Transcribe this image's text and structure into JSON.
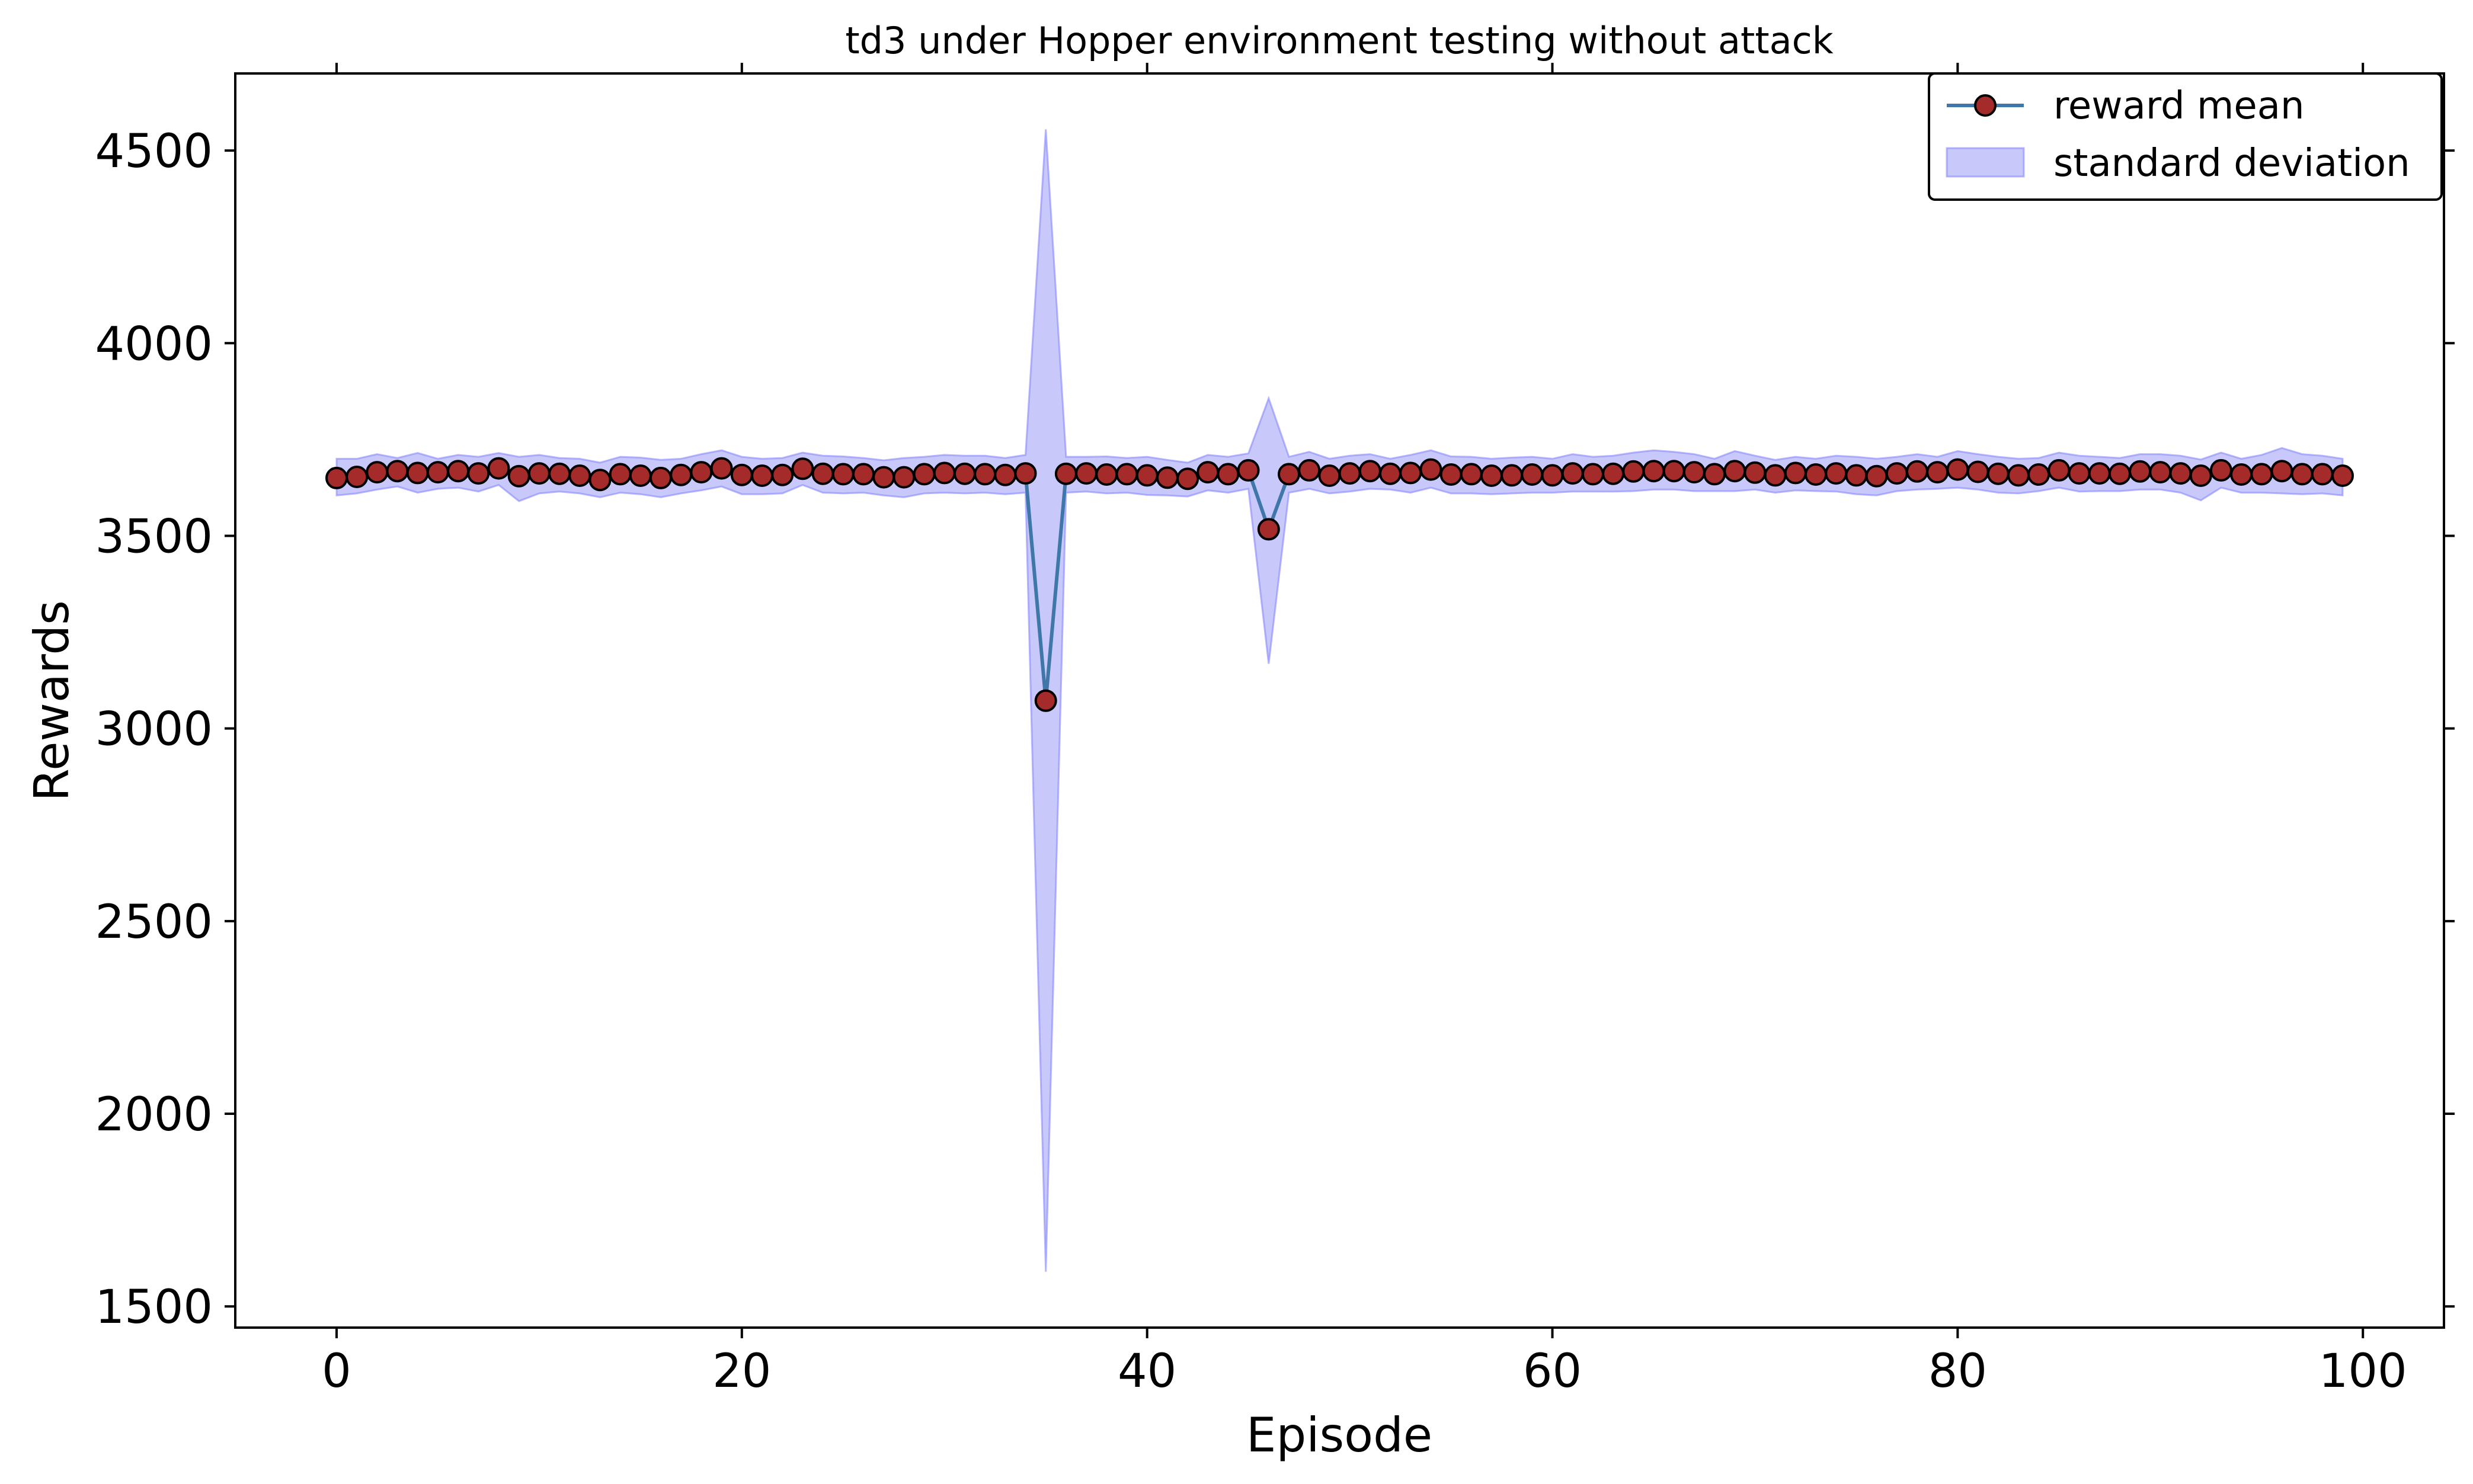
{
  "chart_data": {
    "type": "line",
    "title": "td3 under Hopper environment testing without attack",
    "xlabel": "Episode",
    "ylabel": "Rewards",
    "xlim": [
      -5,
      104
    ],
    "ylim": [
      1445,
      4700
    ],
    "xticks": [
      0,
      20,
      40,
      60,
      80,
      100
    ],
    "yticks": [
      1500,
      2000,
      2500,
      3000,
      3500,
      4000,
      4500
    ],
    "grid": false,
    "legend_position": "top-right",
    "colors": {
      "line": "#3f77a8",
      "marker_fill": "#a52a2a",
      "marker_edge": "#000000",
      "band_fill": "#6e6ef5",
      "band_edge": "#8080ff"
    },
    "series": [
      {
        "name": "reward mean",
        "x": [
          0,
          1,
          2,
          3,
          4,
          5,
          6,
          7,
          8,
          9,
          10,
          11,
          12,
          13,
          14,
          15,
          16,
          17,
          18,
          19,
          20,
          21,
          22,
          23,
          24,
          25,
          26,
          27,
          28,
          29,
          30,
          31,
          32,
          33,
          34,
          35,
          36,
          37,
          38,
          39,
          40,
          41,
          42,
          43,
          44,
          45,
          46,
          47,
          48,
          49,
          50,
          51,
          52,
          53,
          54,
          55,
          56,
          57,
          58,
          59,
          60,
          61,
          62,
          63,
          64,
          65,
          66,
          67,
          68,
          69,
          70,
          71,
          72,
          73,
          74,
          75,
          76,
          77,
          78,
          79,
          80,
          81,
          82,
          83,
          84,
          85,
          86,
          87,
          88,
          89,
          90,
          91,
          92,
          93,
          94,
          95,
          96,
          97,
          98,
          99
        ],
        "values": [
          3650,
          3653,
          3665,
          3668,
          3663,
          3665,
          3668,
          3662,
          3675,
          3655,
          3662,
          3661,
          3656,
          3645,
          3660,
          3656,
          3650,
          3658,
          3665,
          3675,
          3658,
          3656,
          3658,
          3674,
          3661,
          3660,
          3660,
          3652,
          3652,
          3660,
          3663,
          3661,
          3660,
          3658,
          3662,
          3072,
          3661,
          3662,
          3659,
          3660,
          3657,
          3651,
          3648,
          3665,
          3660,
          3670,
          3517,
          3660,
          3670,
          3656,
          3662,
          3668,
          3661,
          3663,
          3672,
          3659,
          3660,
          3656,
          3657,
          3659,
          3657,
          3662,
          3660,
          3661,
          3667,
          3668,
          3668,
          3665,
          3660,
          3668,
          3664,
          3657,
          3663,
          3659,
          3662,
          3657,
          3655,
          3662,
          3667,
          3665,
          3672,
          3666,
          3661,
          3657,
          3659,
          3670,
          3662,
          3662,
          3661,
          3667,
          3665,
          3662,
          3656,
          3670,
          3659,
          3660,
          3668,
          3660,
          3660,
          3656
        ]
      },
      {
        "name": "standard deviation",
        "x": [
          0,
          1,
          2,
          3,
          4,
          5,
          6,
          7,
          8,
          9,
          10,
          11,
          12,
          13,
          14,
          15,
          16,
          17,
          18,
          19,
          20,
          21,
          22,
          23,
          24,
          25,
          26,
          27,
          28,
          29,
          30,
          31,
          32,
          33,
          34,
          35,
          36,
          37,
          38,
          39,
          40,
          41,
          42,
          43,
          44,
          45,
          46,
          47,
          48,
          49,
          50,
          51,
          52,
          53,
          54,
          55,
          56,
          57,
          58,
          59,
          60,
          61,
          62,
          63,
          64,
          65,
          66,
          67,
          68,
          69,
          70,
          71,
          72,
          73,
          74,
          75,
          76,
          77,
          78,
          79,
          80,
          81,
          82,
          83,
          84,
          85,
          86,
          87,
          88,
          89,
          90,
          91,
          92,
          93,
          94,
          95,
          96,
          97,
          98,
          99
        ],
        "upper": [
          3700,
          3700,
          3712,
          3702,
          3715,
          3700,
          3710,
          3705,
          3715,
          3705,
          3710,
          3702,
          3700,
          3690,
          3705,
          3703,
          3697,
          3700,
          3712,
          3722,
          3705,
          3700,
          3702,
          3716,
          3708,
          3706,
          3702,
          3696,
          3702,
          3705,
          3710,
          3708,
          3708,
          3702,
          3710,
          4555,
          3705,
          3705,
          3706,
          3702,
          3705,
          3697,
          3690,
          3710,
          3705,
          3714,
          3857,
          3705,
          3718,
          3700,
          3708,
          3712,
          3700,
          3710,
          3722,
          3706,
          3705,
          3700,
          3703,
          3705,
          3700,
          3712,
          3705,
          3708,
          3716,
          3722,
          3718,
          3712,
          3700,
          3720,
          3708,
          3697,
          3705,
          3700,
          3708,
          3705,
          3700,
          3705,
          3712,
          3705,
          3720,
          3712,
          3705,
          3700,
          3702,
          3716,
          3708,
          3705,
          3702,
          3712,
          3712,
          3708,
          3698,
          3716,
          3700,
          3710,
          3728,
          3712,
          3708,
          3700
        ],
        "lower": [
          3605,
          3610,
          3620,
          3628,
          3612,
          3622,
          3625,
          3615,
          3632,
          3590,
          3610,
          3615,
          3610,
          3600,
          3612,
          3608,
          3600,
          3610,
          3618,
          3628,
          3608,
          3608,
          3610,
          3632,
          3612,
          3610,
          3612,
          3605,
          3600,
          3610,
          3612,
          3610,
          3612,
          3608,
          3612,
          1590,
          3612,
          3615,
          3610,
          3612,
          3606,
          3605,
          3602,
          3618,
          3612,
          3622,
          3168,
          3612,
          3622,
          3610,
          3615,
          3622,
          3620,
          3612,
          3625,
          3610,
          3610,
          3608,
          3610,
          3612,
          3612,
          3615,
          3615,
          3615,
          3616,
          3620,
          3620,
          3616,
          3616,
          3616,
          3620,
          3612,
          3618,
          3616,
          3615,
          3608,
          3605,
          3616,
          3620,
          3622,
          3625,
          3620,
          3612,
          3610,
          3616,
          3625,
          3615,
          3616,
          3616,
          3620,
          3620,
          3612,
          3592,
          3625,
          3612,
          3612,
          3610,
          3608,
          3610,
          3605
        ]
      }
    ]
  }
}
